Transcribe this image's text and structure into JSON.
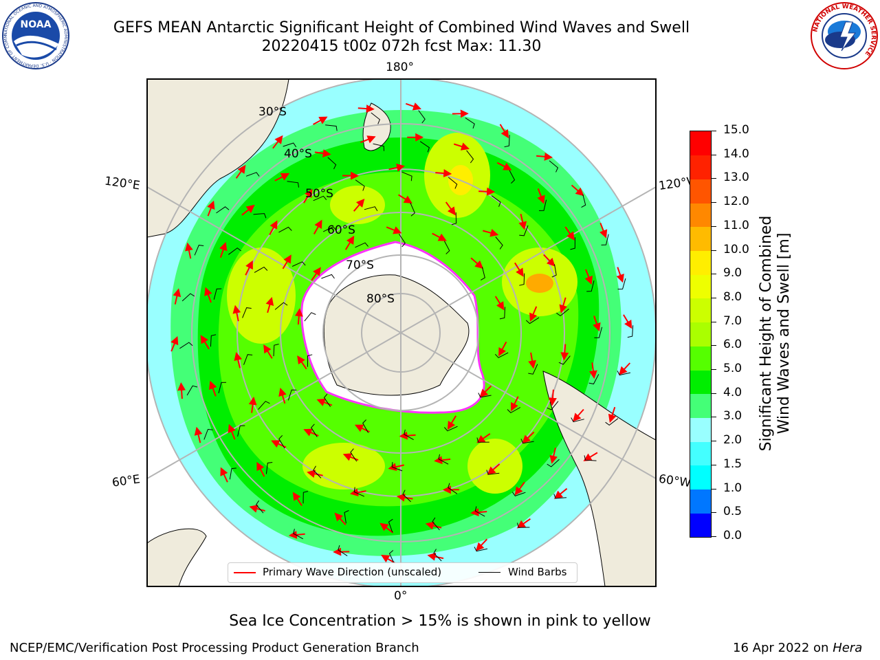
{
  "header": {
    "title_line1": "GEFS MEAN Antarctic Significant Height of Combined Wind Waves and Swell",
    "title_line2": "20220415 t00z 072h fcst   Max: 11.30"
  },
  "logos": {
    "noaa_text": "NOAA",
    "noaa_ring_text": "NATIONAL OCEANIC AND ATMOSPHERIC ADMINISTRATION · U.S. DEPARTMENT OF COMMERCE",
    "nws_ring_text": "NATIONAL WEATHER SERVICE"
  },
  "map": {
    "lon_labels": {
      "top": "180°",
      "bottom": "0°",
      "upper_left": "120°E",
      "upper_right": "120°W",
      "lower_left": "60°E",
      "lower_right": "60°W"
    },
    "lat_labels": [
      "30°S",
      "40°S",
      "50°S",
      "60°S",
      "70°S",
      "80°S"
    ],
    "colors": {
      "land": "#efebdc",
      "ice": "#ffffff",
      "ocean_low": "#99ffff",
      "ocean_mid": "#33ff66",
      "ocean_high": "#ccff00",
      "peak": "#ffaa00",
      "arrow": "#ff0000",
      "barb": "#000000",
      "ice_edge": "#ff33ff"
    }
  },
  "legend": {
    "wave_label": "Primary Wave Direction (unscaled)",
    "barb_label": "Wind Barbs"
  },
  "colorbar": {
    "ticks": [
      "0.0",
      "0.5",
      "1.0",
      "1.5",
      "2.0",
      "3.0",
      "4.0",
      "5.0",
      "6.0",
      "7.0",
      "8.0",
      "9.0",
      "10.0",
      "11.0",
      "12.0",
      "13.0",
      "14.0",
      "15.0"
    ],
    "colors": [
      "#0000ff",
      "#0077ff",
      "#00ffff",
      "#44ffff",
      "#99ffff",
      "#44ff77",
      "#00ee00",
      "#55ff00",
      "#aaff00",
      "#ccff00",
      "#eeff00",
      "#ffee00",
      "#ffbb00",
      "#ff8800",
      "#ff5500",
      "#ff2200",
      "#ff0000"
    ],
    "title_line1": "Significant Height of Combined",
    "title_line2": "Wind Waves and Swell [m]"
  },
  "notes": {
    "sea_ice": "Sea Ice Concentration > 15% is shown in pink to yellow"
  },
  "footer": {
    "branch": "NCEP/EMC/Verification Post Processing Product Generation Branch",
    "date": "16 Apr 2022 on",
    "machine": "Hera"
  }
}
